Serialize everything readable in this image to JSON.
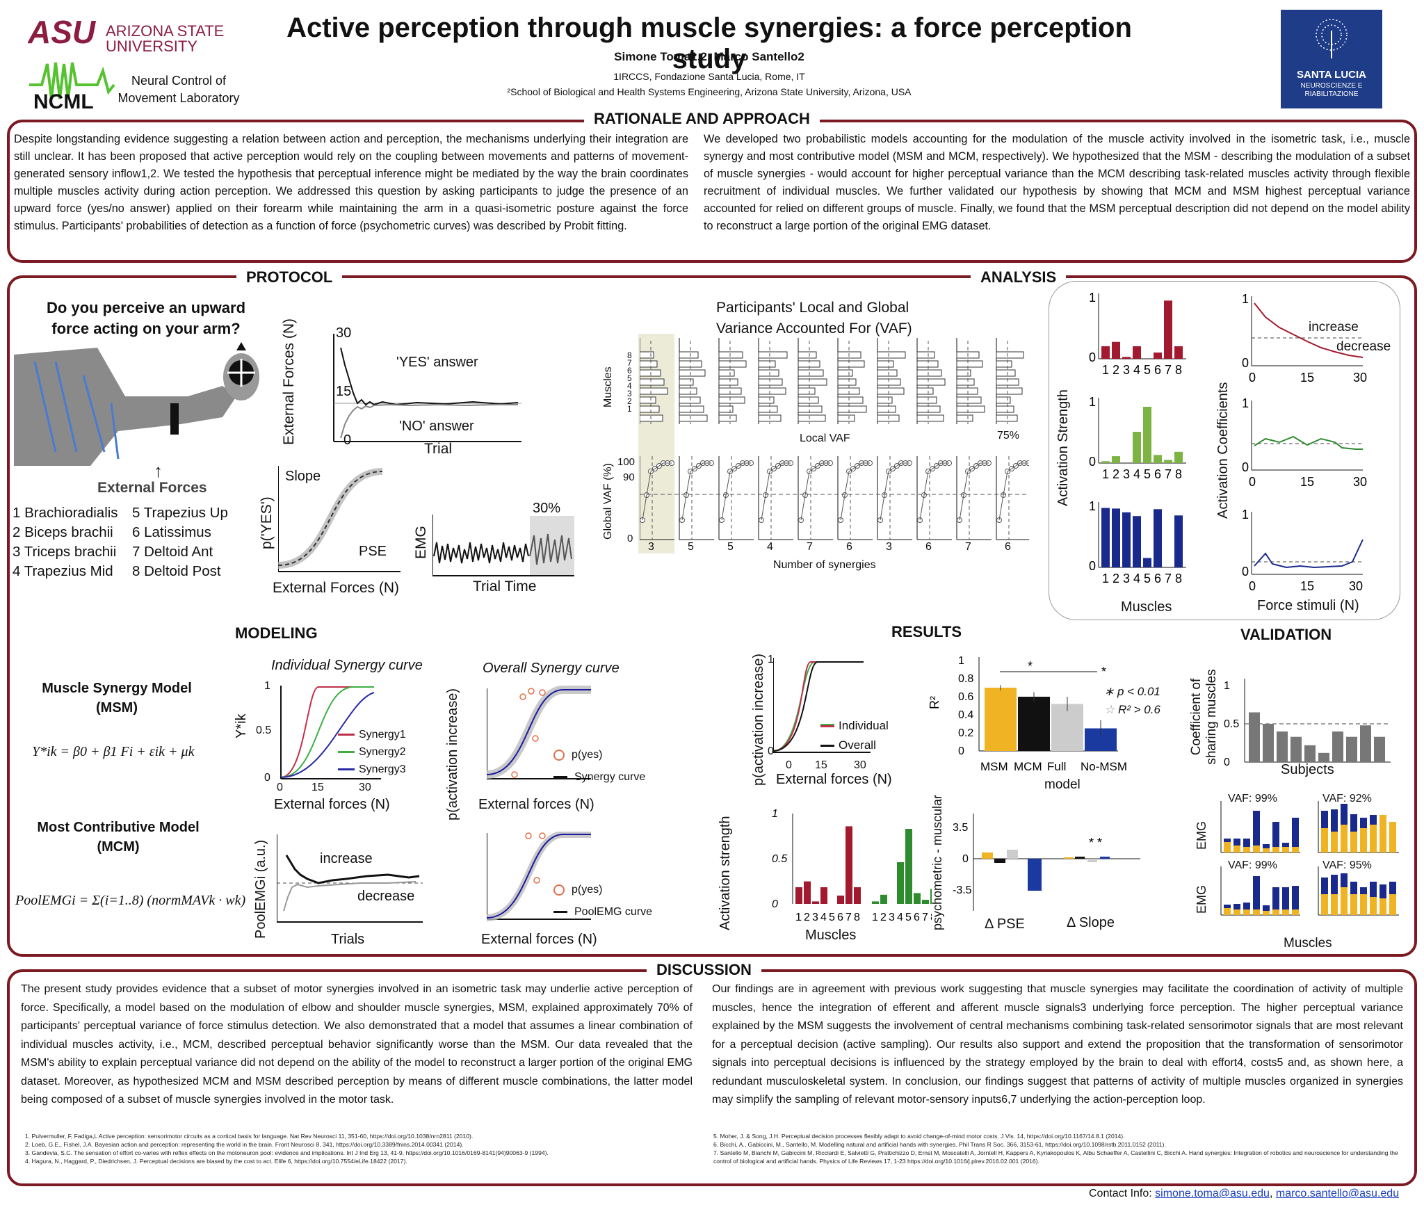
{
  "header": {
    "title": "Active perception through muscle synergies: a force perception study",
    "authors": "Simone Toma1,2,  Marco Santello2",
    "affil1": "1IRCCS, Fondazione Santa Lucia, Rome, IT",
    "affil2": "²School of Biological and Health Systems Engineering, Arizona State University, Arizona, USA",
    "asu_logo": "ARIZONA STATE UNIVERSITY",
    "ncml_logo": "NCML",
    "ncml_text": "Neural Control of Movement Laboratory",
    "santalucia_logo": "SANTA LUCIA",
    "santalucia_sub": "NEUROSCIENZE E RIABILITAZIONE",
    "brand_color": "#7b1a22"
  },
  "rationale": {
    "title": "RATIONALE AND APPROACH",
    "left": "Despite longstanding evidence suggesting a relation between action and perception, the mechanisms underlying their integration are still unclear. It has been proposed that active perception would rely on the coupling between movements and patterns of movement-generated sensory inflow1,2. We tested the hypothesis that perceptual inference might be mediated by the way the brain coordinates multiple muscles activity during action perception. We addressed this question by asking participants to judge the presence of an upward force (yes/no answer) applied on their forearm while maintaining the arm in a quasi-isometric posture against the force stimulus. Participants' probabilities of detection as a function of force (psychometric curves) was described by Probit fitting.",
    "right": "We developed two probabilistic models accounting for the modulation of the muscle activity involved in the isometric task, i.e., muscle synergy and most contributive model (MSM and MCM, respectively). We hypothesized that the MSM - describing the modulation of a subset of muscle synergies - would account for higher perceptual variance than the MCM describing task-related muscles activity through flexible recruitment of individual muscles. We further validated our hypothesis by showing that MCM and MSM highest perceptual variance accounted for relied on different groups of muscle. Finally, we found that the MSM perceptual description did not depend on the model ability to reconstruct a large portion of the original EMG dataset."
  },
  "protocol": {
    "title": "PROTOCOL",
    "question": "Do you perceive an upward force acting on your arm?",
    "external_forces": "External Forces",
    "muscles_left": [
      "1 Brachioradialis",
      "2 Biceps brachii",
      "3 Triceps brachii",
      "4 Trapezius Mid"
    ],
    "muscles_right": [
      "5 Trapezius Up",
      "6 Latissimus",
      "7 Deltoid Ant",
      "8 Deltoid Post"
    ],
    "staircase": {
      "ylabel": "External Forces (N)",
      "xlabel": "Trial",
      "yes": "'YES' answer",
      "no": "'NO' answer",
      "yticks": [
        "30",
        "15",
        "0"
      ]
    },
    "psy": {
      "ylabel": "p('YES')",
      "xlabel": "External Forces (N)",
      "slope": "Slope",
      "pse": "PSE"
    },
    "emg": {
      "ylabel": "EMG",
      "xlabel": "Trial Time",
      "pct": "30%"
    }
  },
  "analysis": {
    "title": "ANALYSIS",
    "vaf_title": "Participants' Local and Global Variance Accounted For (VAF)",
    "muscles_label": "Muscles",
    "local_vaf": "Local VAF",
    "pct75": "75%",
    "global_vaf": "Global VAF (%)",
    "yticks": [
      "100",
      "90",
      "0"
    ],
    "n_syn": "Number of synergies",
    "syn_counts": [
      "3",
      "5",
      "5",
      "4",
      "7",
      "6",
      "3",
      "6",
      "7",
      "6"
    ],
    "muscle_idx": [
      "8",
      "7",
      "6",
      "5",
      "4",
      "3",
      "2",
      "1"
    ],
    "act_strength": "Activation Strength",
    "act_coeff": "Activation Coefficients",
    "muscles_x": "Muscles",
    "force_stim": "Force stimuli (N)",
    "increase": "increase",
    "decrease": "decrease"
  },
  "modeling": {
    "title": "MODELING",
    "msm": "Muscle Synergy Model (MSM)",
    "msm_eq": "Y*ik = β0 + β1 Fi + εik + μk",
    "mcm": "Most Contributive Model (MCM)",
    "mcm_eq": "PoolEMGi = Σ(i=1..8) (normMAVk · wk)",
    "ind_title": "Individual Synergy curve",
    "ovr_title": "Overall Synergy curve",
    "ind_legend": [
      "Synergy1",
      "Synergy2",
      "Synergy3"
    ],
    "xlabel": "External forces (N)",
    "pyes": "p(yes)",
    "syn_curve": "Synergy curve",
    "pool_curve": "PoolEMG curve",
    "pool_ylabel": "PoolEMGi (a.u.)",
    "trials": "Trials",
    "p_act": "p(activation increase)",
    "increase": "increase",
    "decrease": "decrease"
  },
  "results": {
    "title": "RESULTS",
    "p_act": "p(activation increase)",
    "ext_forces": "External forces (N)",
    "individual": "Individual",
    "overall": "Overall",
    "r2": "R²",
    "bar_labels": [
      "MSM",
      "MCM",
      "Full",
      "No-MSM"
    ],
    "model": "model",
    "p_note": "p < 0.01",
    "r2_note": "R² > 0.6",
    "act_strength": "Activation strength",
    "muscles": "Muscles",
    "psych_musc": "psychometric - muscular",
    "dpse": "Δ PSE",
    "dslope": "Δ Slope"
  },
  "validation": {
    "title": "VALIDATION",
    "ylabel": "Coefficient of sharing muscles",
    "xlabel": "Subjects",
    "vaf": [
      "VAF: 99%",
      "VAF: 92%",
      "VAF: 99%",
      "VAF: 95%"
    ],
    "emg": "EMG",
    "muscles": "Muscles"
  },
  "discussion": {
    "title": "DISCUSSION",
    "left": "The present study provides evidence that a subset of motor synergies involved in an isometric task may underlie active perception of force. Specifically, a model based on the modulation of elbow and shoulder muscle synergies, MSM, explained approximately 70% of participants' perceptual variance of force stimulus detection. We also demonstrated that a model that assumes a linear combination of individual muscles activity, i.e., MCM, described perceptual behavior significantly worse than the MSM. Our data revealed that the MSM's ability to explain perceptual variance did not depend on the ability of the model to reconstruct a larger portion of the original EMG dataset. Moreover, as hypothesized MCM and MSM described perception by means of different muscle combinations, the latter model being composed of a subset of muscle synergies involved in the motor task.",
    "right": "Our findings are in agreement with previous work suggesting that muscle synergies may facilitate the coordination of activity of multiple muscles, hence the integration of efferent and afferent muscle signals3 underlying force perception. The higher perceptual variance explained by the MSM suggests the involvement of central mechanisms combining task-related sensorimotor signals that are most relevant for a perceptual decision (active sampling). Our results also support and extend the proposition that the transformation of sensorimotor signals into perceptual decisions is influenced by the strategy employed by the brain to deal with effort4, costs5 and, as shown here, a redundant musculoskeletal system. In conclusion, our findings suggest that patterns of activity of multiple muscles organized in synergies may simplify the sampling of relevant motor-sensory inputs6,7 underlying the action-perception loop.",
    "refs_left": [
      "1.   Pulvermuller, F, Fadiga,L Active perception: sensorimotor circuits as a cortical basis for language. Nat Rev Neurosci 11, 351-60, https://doi.org/10.1038/nrn2811 (2010).",
      "2.   Loeb, G.E., Fishel, J.A. Bayesian action and perception: representing the world in the brain. Front Neurosci 8, 341, https://doi.org/10.3389/fnins.2014.00341 (2014).",
      "3.   Gandevia, S.C. The sensation of effort co-varies with reflex effects on the motoneuron pool: evidence and implications. Int J Ind Erg 13, 41-9, https://doi.org/10.1016/0169-8141(94)90063-9 (1994).",
      "4.   Hagura, N., Haggard, P., Diedrichsen, J. Perceptual decisions are biased by the cost to act. Elife 6, https://doi.org/10.7554/eLife.18422 (2017)."
    ],
    "refs_right": [
      "5.   Moher, J. & Song, J.H. Perceptual decision processes flexibly adapt to avoid change-of-mind motor costs. J Vis. 14, https://doi.org/10.1167/14.8.1 (2014).",
      "6.   Bicchi, A., Gabiccini, M., Santello, M. Modelling natural and artificial hands with synergies. Phil Trans R Soc. 366, 3153-61, https://doi.org/10.1098/rstb.2011.0152 (2011).",
      "7.   Santello M, Bianchi M, Gabiccini M, Ricciardi E, Salvietti G, Prattichizzo D, Ernst M, Moscatelli A, Jorntell H, Kappers A, Kyriakopoulos K, Albu Schaeffer A, Castellini C, Bicchi A. Hand synergies: Integration of robotics and neuroscience for understanding the control of biological and artificial hands. Physics of Life Reviews 17, 1-23 https://doi.org/10.1016/j.plrev.2016.02.001 (2016)."
    ]
  },
  "contact": {
    "label": "Contact Info:",
    "email1": "simone.toma@asu.edu",
    "sep": ",",
    "email2": "marco.santello@asu.edu"
  },
  "chart_data": [
    {
      "type": "bar",
      "title": "",
      "ylabel": "Activation Strength",
      "categories": [
        "1",
        "2",
        "3",
        "4",
        "5",
        "6",
        "7",
        "8"
      ],
      "values": [
        0.2,
        0.27,
        0.03,
        0.2,
        0.0,
        0.1,
        0.93,
        0.2
      ],
      "color": "#a3192f"
    },
    {
      "type": "bar",
      "categories": [
        "1",
        "2",
        "3",
        "4",
        "5",
        "6",
        "7",
        "8"
      ],
      "values": [
        0.03,
        0.11,
        0.0,
        0.5,
        0.9,
        0.13,
        0.05,
        0.18
      ],
      "color": "#7cb342"
    },
    {
      "type": "bar",
      "xlabel": "Muscles",
      "categories": [
        "1",
        "2",
        "3",
        "4",
        "5",
        "6",
        "7",
        "8"
      ],
      "values": [
        0.95,
        0.94,
        0.88,
        0.82,
        0.15,
        0.93,
        0.0,
        0.83
      ],
      "color": "#1a2a8c"
    },
    {
      "type": "bar",
      "title": "",
      "ylabel": "R²",
      "categories": [
        "MSM",
        "MCM",
        "Full",
        "No-MSM"
      ],
      "values": [
        0.7,
        0.6,
        0.52,
        0.25
      ],
      "errors": [
        0.03,
        0.05,
        0.08,
        0.09
      ],
      "ylim": [
        0,
        1
      ],
      "colors": [
        "#f0b323",
        "#111111",
        "#cccccc",
        "#1a3aa0"
      ]
    },
    {
      "type": "bar",
      "ylabel": "Coefficient of sharing muscles",
      "xlabel": "Subjects",
      "categories": [
        "1",
        "2",
        "3",
        "4",
        "5",
        "6",
        "7",
        "8",
        "9",
        "10"
      ],
      "values": [
        0.65,
        0.5,
        0.4,
        0.33,
        0.22,
        0.12,
        0.4,
        0.33,
        0.48,
        0.33
      ],
      "ylim": [
        0,
        1
      ],
      "color": "#777777"
    }
  ]
}
